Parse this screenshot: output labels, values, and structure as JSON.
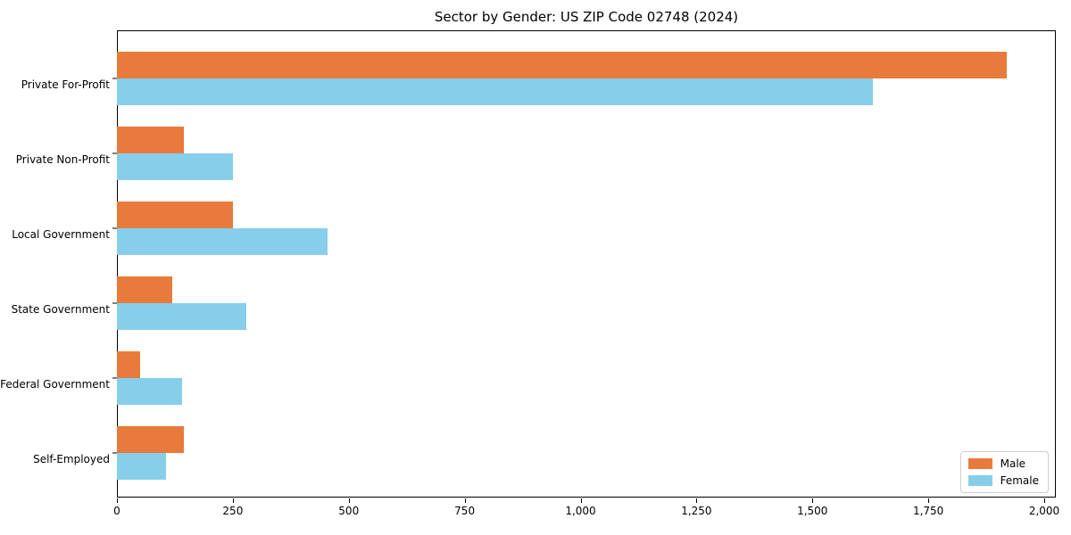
{
  "chart_data": {
    "type": "bar",
    "orientation": "horizontal",
    "title": "Sector by Gender: US ZIP Code 02748 (2024)",
    "categories": [
      "Private For-Profit",
      "Private Non-Profit",
      "Local Government",
      "State Government",
      "Federal Government",
      "Self-Employed"
    ],
    "series": [
      {
        "name": "Male",
        "color": "#e87b3c",
        "values": [
          1920,
          145,
          250,
          120,
          50,
          145
        ]
      },
      {
        "name": "Female",
        "color": "#87ceeb",
        "values": [
          1630,
          250,
          455,
          280,
          140,
          105
        ]
      }
    ],
    "xlabel": "",
    "ylabel": "",
    "xlim": [
      0,
      2025
    ],
    "xticks": [
      0,
      250,
      500,
      750,
      1000,
      1250,
      1500,
      1750,
      2000
    ],
    "xtick_labels": [
      "0",
      "250",
      "500",
      "750",
      "1,000",
      "1,250",
      "1,500",
      "1,750",
      "2,000"
    ],
    "legend_position": "lower right",
    "grid": false,
    "axis_color": "#000000",
    "background_color": "#ffffff"
  }
}
